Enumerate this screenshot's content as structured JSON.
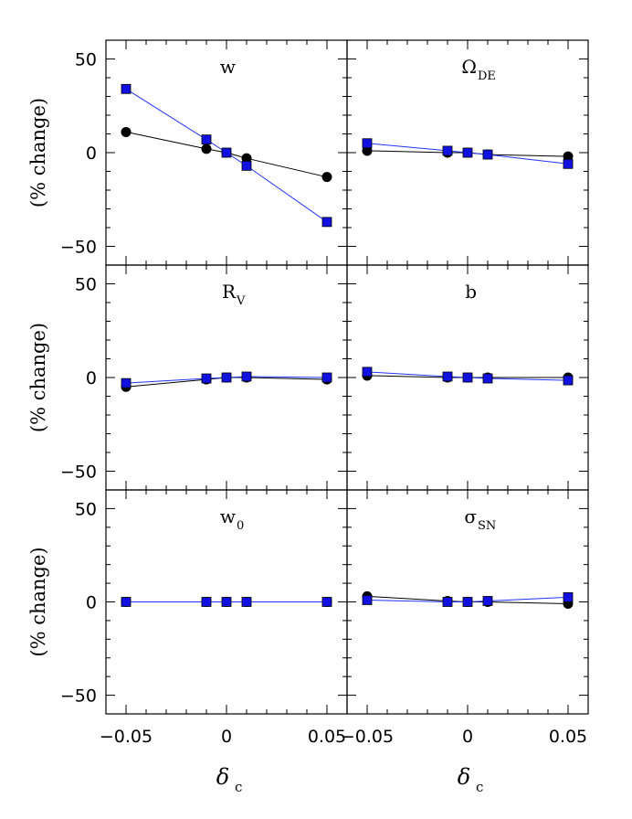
{
  "chart_data": {
    "type": "scatter",
    "x": [
      -0.05,
      -0.01,
      0,
      0.01,
      0.05
    ],
    "xlim": [
      -0.06,
      0.06
    ],
    "ylim": [
      -60,
      60
    ],
    "xticks": [
      -0.05,
      0,
      0.05
    ],
    "xtick_labels": [
      "−0.05",
      "0",
      "0.05"
    ],
    "yticks": [
      -50,
      0,
      50
    ],
    "ytick_labels": [
      "−50",
      "0",
      "50"
    ],
    "ylabel": "(% change)",
    "xlabel": {
      "main": "δ",
      "sub": "c"
    },
    "series_styles": [
      {
        "marker": "circle",
        "color": "#000000",
        "line_color": "#000000"
      },
      {
        "marker": "square",
        "color": "#1010e0",
        "line_color": "#2233ff"
      }
    ],
    "panels": [
      {
        "label": "w",
        "sub": "",
        "circle": [
          11,
          2,
          0,
          -3,
          -13
        ],
        "square": [
          34,
          7,
          0,
          -7,
          -37
        ]
      },
      {
        "label": "Ω",
        "sub": "DE",
        "circle": [
          1,
          0,
          0,
          -1,
          -2
        ],
        "square": [
          5,
          1,
          0,
          -1,
          -6
        ]
      },
      {
        "label": "R",
        "sub": "V",
        "circle": [
          -5,
          -1,
          0,
          0,
          -1
        ],
        "square": [
          -3,
          -0.5,
          0,
          0.5,
          0
        ]
      },
      {
        "label": "b",
        "sub": "",
        "circle": [
          1,
          0,
          0,
          0,
          0
        ],
        "square": [
          3,
          0.5,
          0,
          -0.5,
          -1.5
        ]
      },
      {
        "label": "w",
        "sub": "0",
        "circle": [
          0,
          0,
          0,
          0,
          0
        ],
        "square": [
          0,
          0,
          0,
          0,
          0
        ]
      },
      {
        "label": "σ",
        "sub": "SN",
        "circle": [
          3,
          0.5,
          0,
          0,
          -1
        ],
        "square": [
          1,
          0,
          0,
          0.5,
          2.5
        ]
      }
    ]
  }
}
